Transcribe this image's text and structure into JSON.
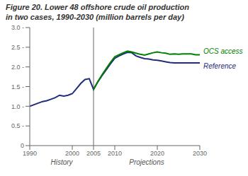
{
  "chart_data": {
    "type": "line",
    "title": "Figure 20. Lower 48 offshore crude oil production",
    "subtitle": "in two cases, 1990-2030 (million barrels per day)",
    "x": [
      1990,
      1991,
      1992,
      1993,
      1994,
      1995,
      1996,
      1997,
      1998,
      1999,
      2000,
      2001,
      2002,
      2003,
      2004,
      2005,
      2006,
      2007,
      2008,
      2009,
      2010,
      2011,
      2012,
      2013,
      2014,
      2015,
      2016,
      2017,
      2018,
      2019,
      2020,
      2021,
      2022,
      2023,
      2024,
      2025,
      2026,
      2027,
      2028,
      2029,
      2030
    ],
    "series": [
      {
        "name": "Reference",
        "color": "#1f2d7b",
        "values": [
          1.0,
          1.04,
          1.08,
          1.12,
          1.14,
          1.18,
          1.22,
          1.28,
          1.26,
          1.28,
          1.32,
          1.45,
          1.58,
          1.68,
          1.7,
          1.43,
          1.62,
          1.78,
          1.93,
          2.08,
          2.22,
          2.28,
          2.33,
          2.37,
          2.36,
          2.28,
          2.24,
          2.21,
          2.2,
          2.18,
          2.17,
          2.15,
          2.13,
          2.11,
          2.1,
          2.1,
          2.1,
          2.1,
          2.1,
          2.1,
          2.1
        ]
      },
      {
        "name": "OCS access",
        "color": "#008000",
        "values": [
          null,
          null,
          null,
          null,
          null,
          null,
          null,
          null,
          null,
          null,
          null,
          null,
          null,
          null,
          null,
          1.43,
          1.62,
          1.8,
          1.96,
          2.12,
          2.26,
          2.31,
          2.36,
          2.4,
          2.38,
          2.35,
          2.32,
          2.3,
          2.33,
          2.36,
          2.38,
          2.36,
          2.35,
          2.32,
          2.33,
          2.32,
          2.33,
          2.33,
          2.33,
          2.31,
          2.31
        ]
      }
    ],
    "divider": 2005,
    "annotations": [
      "History",
      "Projections"
    ],
    "xlim": [
      1990,
      2030
    ],
    "xticks": [
      1990,
      2000,
      2005,
      2010,
      2020,
      2030
    ],
    "ylim": [
      0,
      3.0
    ],
    "yticks": [
      0,
      {
        "value": 0.5,
        "label": "0.5 -"
      },
      {
        "value": 1.0,
        "label": "1.0 -"
      },
      {
        "value": 1.5,
        "label": "1.5 -"
      },
      {
        "value": 2.0,
        "label": "2.0 -"
      },
      {
        "value": 2.5,
        "label": "2.5 -"
      },
      {
        "value": 3.0,
        "label": "3.0 -"
      }
    ],
    "grid": false
  }
}
